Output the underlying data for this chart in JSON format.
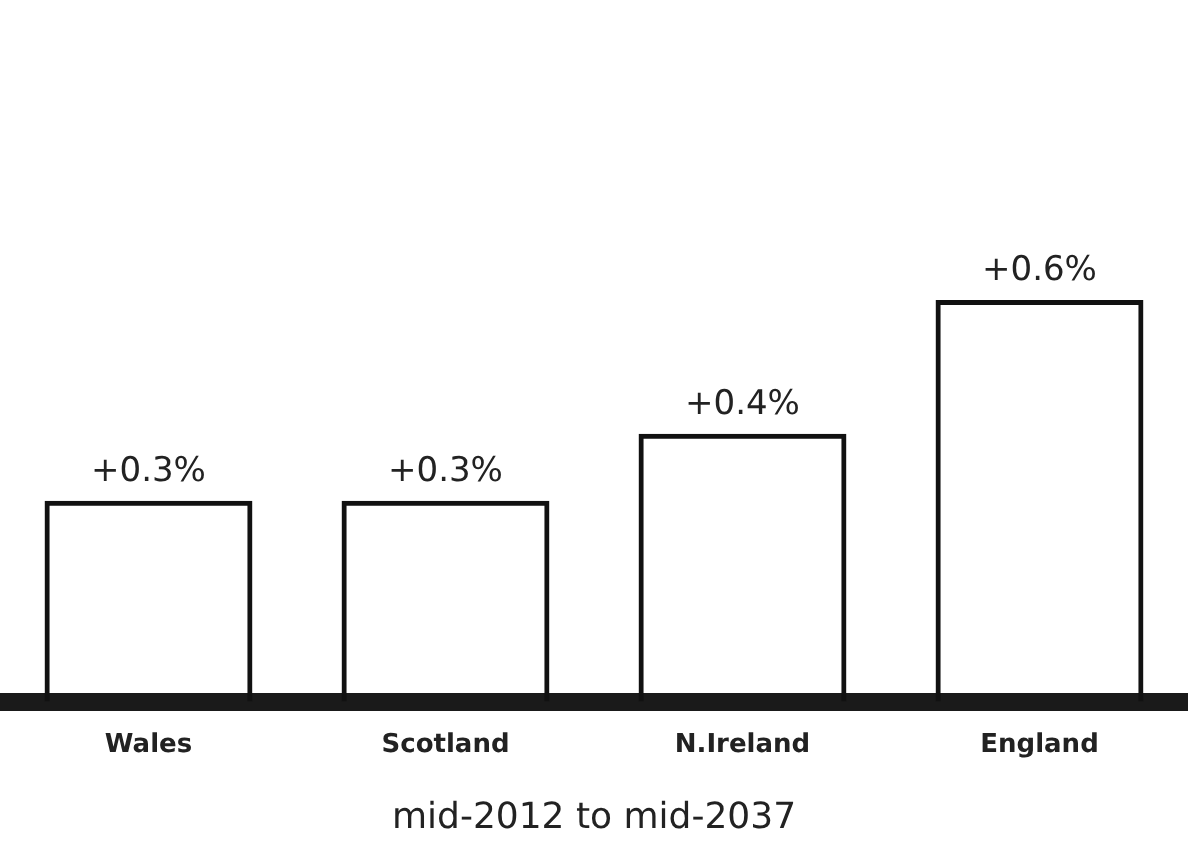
{
  "chart_data": {
    "type": "bar",
    "xlabel": "mid-2012 to mid-2037",
    "categories": [
      "Wales",
      "Scotland",
      "N.Ireland",
      "England"
    ],
    "values": [
      0.3,
      0.3,
      0.4,
      0.6
    ],
    "value_labels": [
      "+0.3%",
      "+0.3%",
      "+0.4%",
      "+0.6%"
    ],
    "color": "#111111",
    "tick_labels": "x",
    "grid": false,
    "legend": false
  }
}
